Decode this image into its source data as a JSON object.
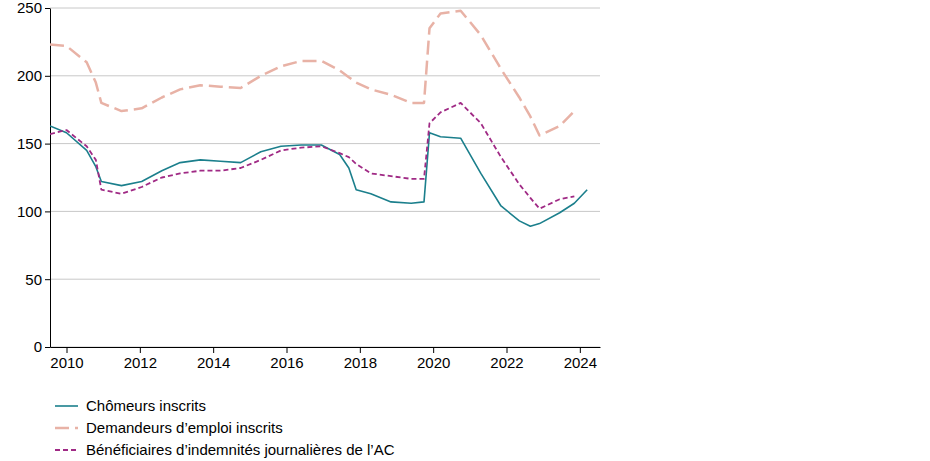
{
  "chart_data": {
    "type": "line",
    "x": [
      2009.55,
      2010.0,
      2010.55,
      2010.8,
      2010.95,
      2011.5,
      2012.05,
      2012.6,
      2013.1,
      2013.65,
      2014.2,
      2014.75,
      2015.3,
      2015.85,
      2016.4,
      2016.95,
      2017.45,
      2017.7,
      2017.9,
      2018.3,
      2018.85,
      2019.4,
      2019.75,
      2019.9,
      2020.2,
      2020.75,
      2021.3,
      2021.85,
      2022.35,
      2022.65,
      2022.9,
      2023.45,
      2023.85,
      2024.2
    ],
    "series": [
      {
        "name": "Chômeurs inscrits",
        "color": "#1b7f8c",
        "line_style": "solid",
        "values": [
          163,
          158,
          145,
          133,
          122,
          119,
          122,
          130,
          136,
          138,
          137,
          136,
          144,
          148,
          149,
          149,
          142,
          132,
          116,
          113,
          107,
          106,
          107,
          158,
          155,
          154,
          128,
          104,
          93,
          89,
          91,
          99,
          106,
          116
        ]
      },
      {
        "name": "Demandeurs d’emploi inscrits",
        "color": "#e8b2a6",
        "line_style": "long-dash",
        "values": [
          223,
          222,
          210,
          195,
          180,
          174,
          176,
          184,
          190,
          193,
          192,
          191,
          200,
          207,
          211,
          211,
          204,
          199,
          195,
          190,
          186,
          180,
          180,
          235,
          246,
          248,
          230,
          205,
          184,
          170,
          156,
          163,
          174,
          null
        ]
      },
      {
        "name": "Bénéficiaires d’indemnités journalières de l’AC",
        "color": "#a02a85",
        "line_style": "dash",
        "values": [
          157,
          160,
          148,
          138,
          116,
          113,
          118,
          125,
          128,
          130,
          130,
          132,
          138,
          145,
          147,
          148,
          143,
          140,
          135,
          128,
          126,
          124,
          124,
          165,
          173,
          180,
          165,
          140,
          120,
          110,
          102,
          109,
          111,
          null
        ]
      }
    ],
    "xlim": [
      2009.55,
      2024.55
    ],
    "xticks": [
      2010,
      2012,
      2014,
      2016,
      2018,
      2020,
      2022,
      2024
    ],
    "ylim": [
      0,
      250
    ],
    "yticks": [
      0,
      50,
      100,
      150,
      200,
      250
    ],
    "grid": true,
    "legend": "bottom"
  }
}
